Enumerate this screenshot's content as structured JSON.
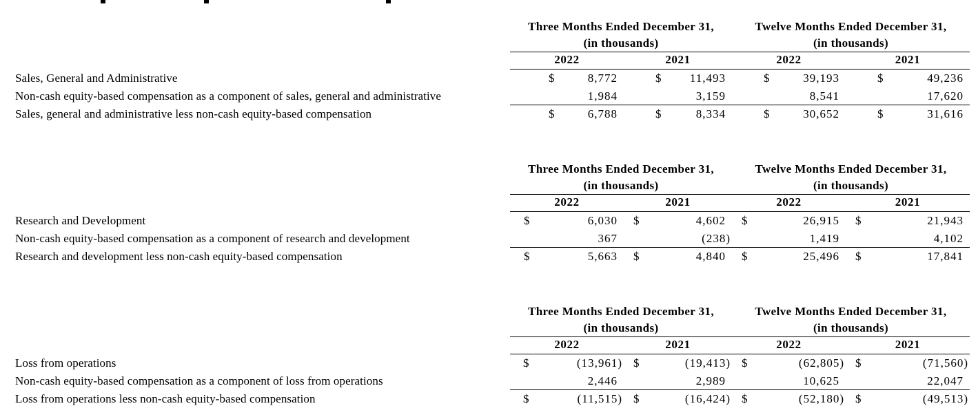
{
  "table_header": {
    "col_groups": [
      {
        "title": "Three Months Ended December 31,",
        "subtitle": "(in thousands)"
      },
      {
        "title": "Twelve Months Ended December 31,",
        "subtitle": "(in thousands)"
      }
    ],
    "years": [
      "2022",
      "2021",
      "2022",
      "2021"
    ]
  },
  "tables": [
    {
      "id": "sales-general-administrative",
      "rows": [
        {
          "label": "Sales, General and Administrative",
          "values": [
            {
              "cur": "$",
              "amt": "8,772"
            },
            {
              "cur": "$",
              "amt": "11,493"
            },
            {
              "cur": "$",
              "amt": "39,193"
            },
            {
              "cur": "$",
              "amt": "49,236"
            }
          ]
        },
        {
          "label": "Non-cash equity-based compensation as a component of sales, general and administrative",
          "values": [
            {
              "cur": "",
              "amt": "1,984"
            },
            {
              "cur": "",
              "amt": "3,159"
            },
            {
              "cur": "",
              "amt": "8,541"
            },
            {
              "cur": "",
              "amt": "17,620"
            }
          ]
        },
        {
          "label": "Sales, general and administrative less non-cash equity-based compensation",
          "values": [
            {
              "cur": "$",
              "amt": "6,788"
            },
            {
              "cur": "$",
              "amt": "8,334"
            },
            {
              "cur": "$",
              "amt": "30,652"
            },
            {
              "cur": "$",
              "amt": "31,616"
            }
          ]
        }
      ]
    },
    {
      "id": "research-development",
      "rows": [
        {
          "label": "Research and Development",
          "values": [
            {
              "cur": "$",
              "amt": "6,030"
            },
            {
              "cur": "$",
              "amt": "4,602"
            },
            {
              "cur": "$",
              "amt": "26,915"
            },
            {
              "cur": "$",
              "amt": "21,943"
            }
          ]
        },
        {
          "label": "Non-cash equity-based compensation as a component of research and development",
          "values": [
            {
              "cur": "",
              "amt": "367"
            },
            {
              "cur": "",
              "amt": "(238)"
            },
            {
              "cur": "",
              "amt": "1,419"
            },
            {
              "cur": "",
              "amt": "4,102"
            }
          ]
        },
        {
          "label": "Research and development less non-cash equity-based compensation",
          "values": [
            {
              "cur": "$",
              "amt": "5,663"
            },
            {
              "cur": "$",
              "amt": "4,840"
            },
            {
              "cur": "$",
              "amt": "25,496"
            },
            {
              "cur": "$",
              "amt": "17,841"
            }
          ]
        }
      ]
    },
    {
      "id": "loss-from-operations",
      "rows": [
        {
          "label": "Loss from operations",
          "values": [
            {
              "cur": "$",
              "amt": "(13,961)"
            },
            {
              "cur": "$",
              "amt": "(19,413)"
            },
            {
              "cur": "$",
              "amt": "(62,805)"
            },
            {
              "cur": "$",
              "amt": "(71,560)"
            }
          ]
        },
        {
          "label": "Non-cash equity-based compensation as a component of loss from operations",
          "values": [
            {
              "cur": "",
              "amt": "2,446"
            },
            {
              "cur": "",
              "amt": "2,989"
            },
            {
              "cur": "",
              "amt": "10,625"
            },
            {
              "cur": "",
              "amt": "22,047"
            }
          ]
        },
        {
          "label": "Loss from operations less non-cash equity-based compensation",
          "values": [
            {
              "cur": "$",
              "amt": "(11,515)"
            },
            {
              "cur": "$",
              "amt": "(16,424)"
            },
            {
              "cur": "$",
              "amt": "(52,180)"
            },
            {
              "cur": "$",
              "amt": "(49,513)"
            }
          ]
        }
      ]
    }
  ],
  "colors": {
    "text": "#000000",
    "background": "#ffffff",
    "rule": "#000000"
  }
}
